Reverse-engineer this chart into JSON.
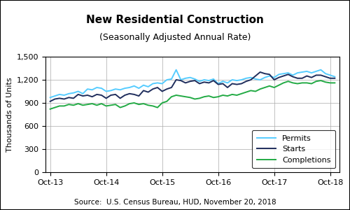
{
  "title": "New Residential Construction",
  "subtitle": "(Seasonally Adjusted Annual Rate)",
  "ylabel": "Thousands of Units",
  "source": "Source:  U.S. Census Bureau, HUD, November 20, 2018",
  "ylim": [
    0,
    1500
  ],
  "yticks": [
    0,
    300,
    600,
    900,
    1200,
    1500
  ],
  "permits_color": "#55CCFF",
  "starts_color": "#1F2D5C",
  "completions_color": "#22AA44",
  "permits": [
    970,
    990,
    1010,
    1000,
    1020,
    1030,
    1050,
    1020,
    1080,
    1070,
    1100,
    1090,
    1050,
    1060,
    1080,
    1070,
    1090,
    1100,
    1120,
    1090,
    1130,
    1110,
    1150,
    1160,
    1150,
    1200,
    1210,
    1330,
    1200,
    1220,
    1230,
    1210,
    1180,
    1200,
    1190,
    1210,
    1150,
    1180,
    1160,
    1200,
    1190,
    1200,
    1220,
    1230,
    1210,
    1200,
    1230,
    1250,
    1230,
    1270,
    1280,
    1290,
    1260,
    1290,
    1300,
    1310,
    1290,
    1310,
    1330,
    1280,
    1260,
    1240
  ],
  "starts": [
    920,
    950,
    960,
    950,
    970,
    960,
    1010,
    990,
    1000,
    980,
    1010,
    1000,
    960,
    1000,
    1010,
    960,
    1000,
    1020,
    1010,
    990,
    1060,
    1040,
    1080,
    1100,
    1050,
    1080,
    1100,
    1200,
    1190,
    1160,
    1180,
    1190,
    1150,
    1170,
    1160,
    1190,
    1140,
    1150,
    1100,
    1150,
    1140,
    1150,
    1180,
    1200,
    1250,
    1300,
    1280,
    1270,
    1200,
    1230,
    1250,
    1270,
    1240,
    1220,
    1220,
    1250,
    1230,
    1260,
    1260,
    1240,
    1220,
    1220
  ],
  "completions": [
    820,
    840,
    860,
    860,
    880,
    870,
    890,
    870,
    880,
    890,
    870,
    890,
    860,
    870,
    880,
    840,
    860,
    890,
    900,
    880,
    890,
    870,
    860,
    840,
    900,
    920,
    980,
    1000,
    990,
    980,
    970,
    950,
    960,
    980,
    990,
    970,
    980,
    1000,
    990,
    1010,
    1000,
    1020,
    1040,
    1060,
    1050,
    1080,
    1100,
    1120,
    1100,
    1130,
    1160,
    1180,
    1160,
    1150,
    1160,
    1160,
    1150,
    1180,
    1190,
    1170,
    1160,
    1160
  ],
  "x_tick_positions": [
    0,
    12,
    24,
    36,
    48,
    60
  ],
  "x_tick_labels": [
    "Oct-13",
    "Oct-14",
    "Oct-15",
    "Oct-16",
    "Oct-17",
    "Oct-18"
  ]
}
